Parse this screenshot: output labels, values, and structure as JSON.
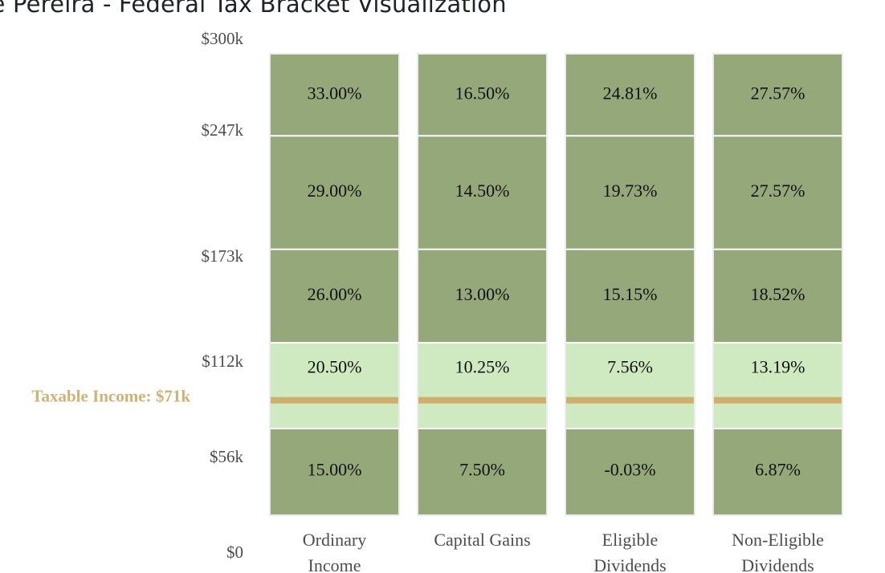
{
  "page": {
    "title": "lie Pereira - Federal Tax Bracket Visualization"
  },
  "colors": {
    "bracket_fill": "#95a87a",
    "current_bracket_fill": "#cfe9c0",
    "income_marker": "#cfae6e",
    "income_label": "#cfb275",
    "grid": "#ffffff",
    "column_border": "#d9d9d9"
  },
  "chart_data": {
    "type": "bar",
    "subtype": "stacked-bracket-columns",
    "title": "lie Pereira - Federal Tax Bracket Visualization",
    "xlabel": "",
    "ylabel": "",
    "ylim": [
      0,
      300000
    ],
    "y_tick_values": [
      0,
      56000,
      112000,
      173000,
      247000,
      300000
    ],
    "y_tick_labels": [
      "$0",
      "$56k",
      "$112k",
      "$173k",
      "$247k",
      "$300k"
    ],
    "categories": [
      [
        "Ordinary",
        "Income"
      ],
      [
        "Capital Gains"
      ],
      [
        "Eligible",
        "Dividends"
      ],
      [
        "Non-Eligible",
        "Dividends"
      ]
    ],
    "brackets": [
      {
        "from": 0,
        "to": 56000
      },
      {
        "from": 56000,
        "to": 112000
      },
      {
        "from": 112000,
        "to": 173000
      },
      {
        "from": 173000,
        "to": 247000
      },
      {
        "from": 247000,
        "to": 300000
      }
    ],
    "rates": [
      [
        "15.00%",
        "20.50%",
        "26.00%",
        "29.00%",
        "33.00%"
      ],
      [
        "7.50%",
        "10.25%",
        "13.00%",
        "14.50%",
        "16.50%"
      ],
      [
        "-0.03%",
        "7.56%",
        "15.15%",
        "19.73%",
        "24.81%"
      ],
      [
        "6.87%",
        "13.19%",
        "18.52%",
        "27.57%",
        "27.57%"
      ]
    ],
    "current_bracket_index": 1,
    "taxable_income": 71000,
    "taxable_income_label": "Taxable Income: $71k",
    "grid": false,
    "legend": "none"
  }
}
